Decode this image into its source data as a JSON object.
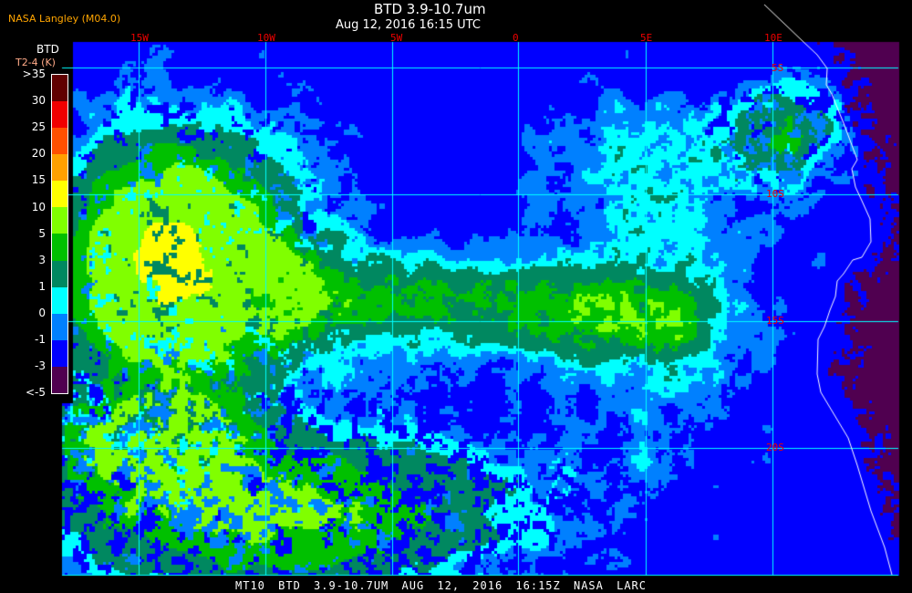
{
  "credit": "NASA Langley (M04.0)",
  "title": "BTD 3.9-10.7um",
  "subtitle": "Aug 12, 2016 16:15 UTC",
  "legend": {
    "title": "BTD",
    "units": "T2-4 (K)",
    "ticks": [
      ">35",
      "30",
      "25",
      "20",
      "15",
      "10",
      "5",
      "3",
      "1",
      "0",
      "-1",
      "-3",
      "<-5"
    ],
    "colors": [
      "#600000",
      "#f00000",
      "#ff5000",
      "#ffa000",
      "#ffff00",
      "#80ff00",
      "#00c000",
      "#008860",
      "#00ffff",
      "#0080ff",
      "#0000ff",
      "#500050"
    ]
  },
  "longitude_labels": [
    "15W",
    "10W",
    "5W",
    "0",
    "5E",
    "10E"
  ],
  "latitude_labels": [
    "5S",
    "10S",
    "15S",
    "20S"
  ],
  "footer": "MT10  BTD 3.9-10.7UM   AUG 12, 2016 16:15Z   NASA LARC",
  "colors": {
    "grid": "#00ffff",
    "labels": "#ee0000",
    "coastline": "#ffffff",
    "background": "#000000"
  }
}
